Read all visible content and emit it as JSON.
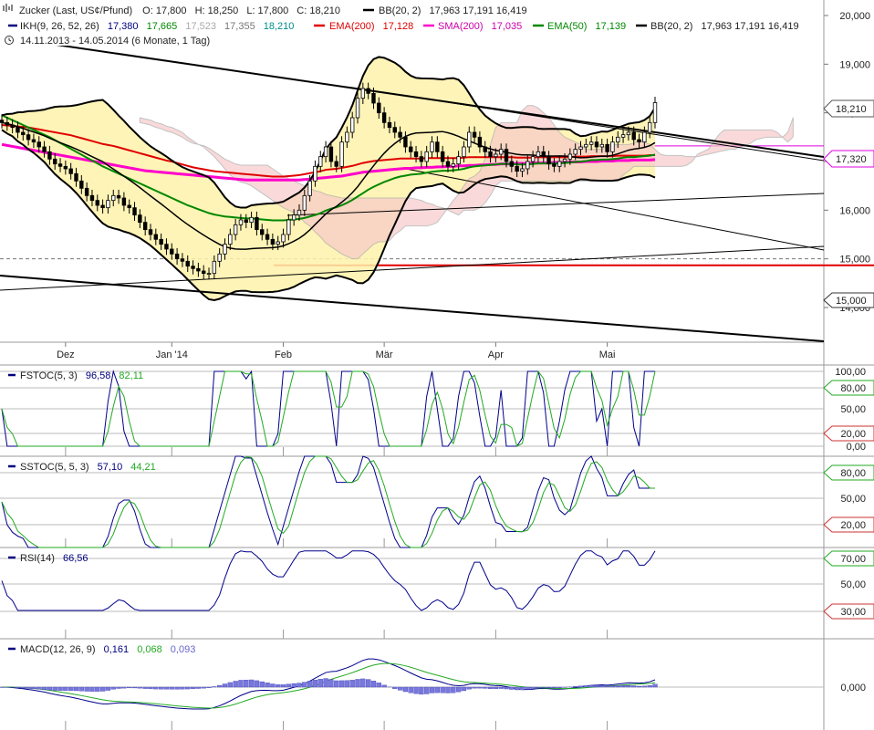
{
  "header": {
    "symbol_line": {
      "name": "Zucker (Last, US¢/Pfund)",
      "o": "O: 17,800",
      "h": "H: 18,250",
      "l": "L: 17,800",
      "c": "C: 18,210",
      "bb": "BB(20, 2)",
      "bb_vals": "17,963  17,191  16,419"
    },
    "indicator_line": {
      "ikh": "IKH(9, 26, 52, 26)",
      "ikh_v1": "17,380",
      "ikh_v2": "17,665",
      "ikh_v3": "17,523",
      "ikh_v4": "17,355",
      "ikh_v5": "18,210",
      "ema200": "EMA(200)",
      "ema200_v": "17,128",
      "sma200": "SMA(200)",
      "sma200_v": "17,035",
      "ema50": "EMA(50)",
      "ema50_v": "17,139",
      "bb": "BB(20, 2)",
      "bb_vals": "17,963  17,191  16,419"
    },
    "date_range": "14.11.2013 - 14.05.2014 (6 Monate, 1 Tag)"
  },
  "colors": {
    "ema200": "#e00000",
    "sma200": "#ff00cc",
    "ema50": "#008800",
    "ikh": "#000080",
    "ikh_teal": "#008b8b",
    "bb": "#000000",
    "stoch_k": "#00008b",
    "stoch_d": "#22aa22",
    "overbought_fill": "#66cc66",
    "oversold_fill": "#cc3333",
    "price_marker": "#dd00dd",
    "bb_fill": "#fff2aa"
  },
  "price_axis": {
    "ticks": [
      "20,000",
      "19,000",
      "18,000",
      "17,000",
      "16,000",
      "15,000",
      "14,000"
    ],
    "last_price": "18,210",
    "level_marker": "17,320",
    "support_marker": "15,000"
  },
  "x_axis": {
    "labels": [
      "Dez",
      "Jan '14",
      "Feb",
      "Mär",
      "Apr",
      "Mai"
    ]
  },
  "panels": {
    "fstoc": {
      "label": "FSTOC(5, 3)",
      "k": "96,58",
      "d": "82,11",
      "ticks": [
        "100,00",
        "80,00",
        "50,00",
        "20,00",
        "0,00"
      ]
    },
    "sstoc": {
      "label": "SSTOC(5, 5, 3)",
      "k": "57,10",
      "d": "44,21",
      "ticks": [
        "80,00",
        "50,00",
        "20,00"
      ]
    },
    "rsi": {
      "label": "RSI(14)",
      "v": "66,56",
      "ticks": [
        "70,00",
        "50,00",
        "30,00"
      ]
    },
    "macd": {
      "label": "MACD(12, 26, 9)",
      "v1": "0,161",
      "v2": "0,068",
      "v3": "0,093",
      "ticks": [
        "0,000"
      ]
    }
  },
  "chart_data": {
    "type": "line",
    "title": "Zucker (Last, US¢/Pfund)",
    "xlabel": "",
    "ylabel": "",
    "ylim": [
      14.0,
      20.0
    ],
    "x": [
      "2013-11-14",
      "2013-11-15",
      "2013-11-18",
      "2013-11-19",
      "2013-11-20",
      "2013-11-21",
      "2013-11-22",
      "2013-11-25",
      "2013-11-26",
      "2013-11-27",
      "2013-11-29",
      "2013-12-02",
      "2013-12-03",
      "2013-12-04",
      "2013-12-05",
      "2013-12-06",
      "2013-12-09",
      "2013-12-10",
      "2013-12-11",
      "2013-12-12",
      "2013-12-13",
      "2013-12-16",
      "2013-12-17",
      "2013-12-18",
      "2013-12-19",
      "2013-12-20",
      "2013-12-23",
      "2013-12-24",
      "2013-12-26",
      "2013-12-27",
      "2013-12-30",
      "2013-12-31",
      "2014-01-02",
      "2014-01-03",
      "2014-01-06",
      "2014-01-07",
      "2014-01-08",
      "2014-01-09",
      "2014-01-10",
      "2014-01-13",
      "2014-01-14",
      "2014-01-15",
      "2014-01-16",
      "2014-01-17",
      "2014-01-21",
      "2014-01-22",
      "2014-01-23",
      "2014-01-24",
      "2014-01-27",
      "2014-01-28",
      "2014-01-29",
      "2014-01-30",
      "2014-01-31",
      "2014-02-03",
      "2014-02-04",
      "2014-02-05",
      "2014-02-06",
      "2014-02-07",
      "2014-02-10",
      "2014-02-11",
      "2014-02-12",
      "2014-02-13",
      "2014-02-14",
      "2014-02-18",
      "2014-02-19",
      "2014-02-20",
      "2014-02-21",
      "2014-02-24",
      "2014-02-25",
      "2014-02-26",
      "2014-02-27",
      "2014-02-28",
      "2014-03-03",
      "2014-03-04",
      "2014-03-05",
      "2014-03-06",
      "2014-03-07",
      "2014-03-10",
      "2014-03-11",
      "2014-03-12",
      "2014-03-13",
      "2014-03-14",
      "2014-03-17",
      "2014-03-18",
      "2014-03-19",
      "2014-03-20",
      "2014-03-21",
      "2014-03-24",
      "2014-03-25",
      "2014-03-26",
      "2014-03-27",
      "2014-03-28",
      "2014-03-31",
      "2014-04-01",
      "2014-04-02",
      "2014-04-03",
      "2014-04-04",
      "2014-04-07",
      "2014-04-08",
      "2014-04-09",
      "2014-04-10",
      "2014-04-11",
      "2014-04-14",
      "2014-04-15",
      "2014-04-16",
      "2014-04-17",
      "2014-04-21",
      "2014-04-22",
      "2014-04-23",
      "2014-04-24",
      "2014-04-25",
      "2014-04-28",
      "2014-04-29",
      "2014-04-30",
      "2014-05-01",
      "2014-05-02",
      "2014-05-05",
      "2014-05-06",
      "2014-05-07",
      "2014-05-08",
      "2014-05-09",
      "2014-05-12",
      "2014-05-13",
      "2014-05-14"
    ],
    "series": [
      {
        "name": "Zucker (Last, US¢/Pfund)",
        "values": [
          17.8,
          17.75,
          17.7,
          17.6,
          17.55,
          17.45,
          17.4,
          17.3,
          17.2,
          17.05,
          16.95,
          16.9,
          16.85,
          16.75,
          16.6,
          16.45,
          16.3,
          16.2,
          16.1,
          16.05,
          16.2,
          16.3,
          16.25,
          16.1,
          16.05,
          15.9,
          15.75,
          15.6,
          15.5,
          15.4,
          15.3,
          15.2,
          15.1,
          15.0,
          14.95,
          14.85,
          14.8,
          14.75,
          14.7,
          14.7,
          14.95,
          15.1,
          15.3,
          15.5,
          15.7,
          15.8,
          15.75,
          15.85,
          15.6,
          15.5,
          15.4,
          15.3,
          15.35,
          15.5,
          15.8,
          15.9,
          16.0,
          16.3,
          16.6,
          16.9,
          17.1,
          17.3,
          17.0,
          16.9,
          17.4,
          17.6,
          17.9,
          18.3,
          18.5,
          18.4,
          18.2,
          18.0,
          17.8,
          17.7,
          17.6,
          17.5,
          17.3,
          17.2,
          17.1,
          17.0,
          17.2,
          17.4,
          17.2,
          17.0,
          16.9,
          16.95,
          17.1,
          17.3,
          17.6,
          17.5,
          17.3,
          17.2,
          17.1,
          17.15,
          17.25,
          17.0,
          16.9,
          16.8,
          16.85,
          17.0,
          17.1,
          17.2,
          17.1,
          16.95,
          16.9,
          17.0,
          17.05,
          17.15,
          17.25,
          17.3,
          17.35,
          17.4,
          17.3,
          17.35,
          17.2,
          17.4,
          17.5,
          17.55,
          17.6,
          17.45,
          17.4,
          17.6,
          17.8,
          18.21
        ]
      },
      {
        "name": "EMA(200)",
        "values": [
          17.75,
          17.74,
          17.73,
          17.72,
          17.71,
          17.7,
          17.68,
          17.66,
          17.64,
          17.62,
          17.6,
          17.58,
          17.56,
          17.54,
          17.51,
          17.48,
          17.45,
          17.42,
          17.39,
          17.36,
          17.34,
          17.32,
          17.29,
          17.26,
          17.23,
          17.2,
          17.17,
          17.14,
          17.11,
          17.08,
          17.05,
          17.02,
          17.0,
          16.97,
          16.94,
          16.91,
          16.88,
          16.86,
          16.84,
          16.82,
          16.8,
          16.79,
          16.78,
          16.77,
          16.76,
          16.75,
          16.74,
          16.73,
          16.72,
          16.71,
          16.7,
          16.69,
          16.69,
          16.69,
          16.7,
          16.71,
          16.72,
          16.74,
          16.76,
          16.78,
          16.8,
          16.83,
          16.84,
          16.85,
          16.87,
          16.89,
          16.91,
          16.94,
          16.97,
          16.99,
          17.01,
          17.02,
          17.03,
          17.04,
          17.05,
          17.06,
          17.06,
          17.06,
          17.06,
          17.06,
          17.07,
          17.07,
          17.07,
          17.07,
          17.07,
          17.07,
          17.07,
          17.08,
          17.09,
          17.09,
          17.09,
          17.09,
          17.09,
          17.09,
          17.09,
          17.09,
          17.09,
          17.08,
          17.08,
          17.08,
          17.08,
          17.09,
          17.09,
          17.09,
          17.09,
          17.09,
          17.09,
          17.09,
          17.1,
          17.1,
          17.1,
          17.11,
          17.11,
          17.11,
          17.11,
          17.11,
          17.12,
          17.12,
          17.12,
          17.12,
          17.12,
          17.12,
          17.13,
          17.13
        ]
      },
      {
        "name": "SMA(200)",
        "values": [
          17.35,
          17.33,
          17.31,
          17.29,
          17.27,
          17.25,
          17.23,
          17.21,
          17.19,
          17.17,
          17.15,
          17.13,
          17.11,
          17.09,
          17.07,
          17.05,
          17.03,
          17.01,
          16.99,
          16.97,
          16.95,
          16.93,
          16.91,
          16.89,
          16.87,
          16.85,
          16.83,
          16.81,
          16.8,
          16.79,
          16.78,
          16.77,
          16.76,
          16.75,
          16.74,
          16.73,
          16.72,
          16.71,
          16.7,
          16.69,
          16.68,
          16.67,
          16.66,
          16.65,
          16.64,
          16.63,
          16.62,
          16.62,
          16.62,
          16.62,
          16.62,
          16.62,
          16.62,
          16.62,
          16.62,
          16.62,
          16.62,
          16.63,
          16.64,
          16.65,
          16.66,
          16.67,
          16.68,
          16.69,
          16.7,
          16.72,
          16.74,
          16.76,
          16.78,
          16.79,
          16.8,
          16.81,
          16.82,
          16.83,
          16.84,
          16.85,
          16.86,
          16.86,
          16.87,
          16.87,
          16.88,
          16.88,
          16.89,
          16.89,
          16.9,
          16.9,
          16.91,
          16.91,
          16.92,
          16.92,
          16.93,
          16.93,
          16.94,
          16.94,
          16.95,
          16.95,
          16.95,
          16.96,
          16.96,
          16.96,
          16.97,
          16.97,
          16.97,
          16.97,
          16.98,
          16.98,
          16.98,
          16.99,
          16.99,
          16.99,
          17.0,
          17.0,
          17.0,
          17.01,
          17.01,
          17.01,
          17.02,
          17.02,
          17.02,
          17.03,
          17.03,
          17.03,
          17.03,
          17.04
        ]
      },
      {
        "name": "EMA(50)",
        "values": [
          17.95,
          17.9,
          17.85,
          17.8,
          17.75,
          17.7,
          17.65,
          17.6,
          17.55,
          17.5,
          17.44,
          17.38,
          17.32,
          17.26,
          17.2,
          17.14,
          17.08,
          17.02,
          16.96,
          16.9,
          16.85,
          16.8,
          16.75,
          16.7,
          16.65,
          16.6,
          16.55,
          16.5,
          16.45,
          16.4,
          16.35,
          16.3,
          16.25,
          16.2,
          16.15,
          16.1,
          16.06,
          16.02,
          15.98,
          15.94,
          15.91,
          15.89,
          15.87,
          15.86,
          15.85,
          15.84,
          15.83,
          15.83,
          15.82,
          15.81,
          15.8,
          15.79,
          15.79,
          15.79,
          15.8,
          15.81,
          15.82,
          15.84,
          15.87,
          15.9,
          15.94,
          15.99,
          16.03,
          16.06,
          16.1,
          16.15,
          16.21,
          16.28,
          16.35,
          16.42,
          16.48,
          16.53,
          16.58,
          16.62,
          16.66,
          16.69,
          16.71,
          16.73,
          16.74,
          16.75,
          16.77,
          16.79,
          16.8,
          16.81,
          16.81,
          16.82,
          16.83,
          16.85,
          16.88,
          16.9,
          16.91,
          16.92,
          16.93,
          16.94,
          16.95,
          16.95,
          16.95,
          16.94,
          16.94,
          16.94,
          16.95,
          16.96,
          16.96,
          16.96,
          16.96,
          16.96,
          16.97,
          16.98,
          16.99,
          17.0,
          17.01,
          17.03,
          17.03,
          17.04,
          17.04,
          17.05,
          17.06,
          17.08,
          17.09,
          17.09,
          17.1,
          17.11,
          17.12,
          17.14
        ]
      }
    ]
  }
}
